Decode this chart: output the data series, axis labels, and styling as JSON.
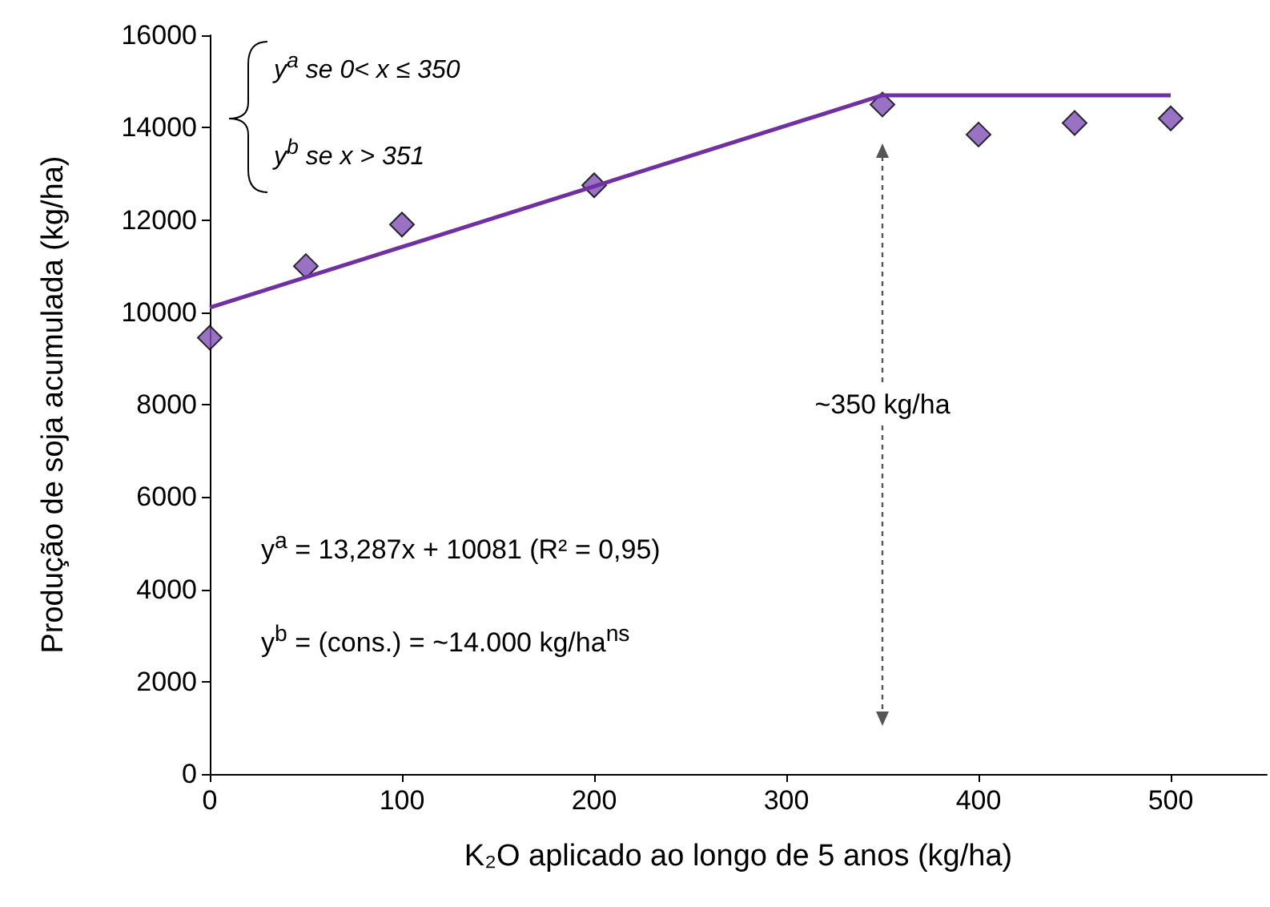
{
  "chart_data": {
    "type": "scatter",
    "xlabel": "K₂O aplicado ao longo de 5 anos (kg/ha)",
    "ylabel": "Produção de soja acumulada (kg/ha)",
    "xlim": [
      0,
      550
    ],
    "xticks": [
      0,
      100,
      200,
      300,
      400,
      500
    ],
    "ylim": [
      0,
      16000
    ],
    "yticks": [
      0,
      2000,
      4000,
      6000,
      8000,
      10000,
      12000,
      14000,
      16000
    ],
    "grid": false,
    "marker": "diamond",
    "series": [
      {
        "color": "#7f4fb5",
        "x": [
          0,
          50,
          100,
          200,
          350,
          400,
          450,
          500
        ],
        "values": [
          9450,
          11000,
          11900,
          12750,
          14500,
          13850,
          14100,
          14200
        ]
      },
      {
        "type": "line",
        "color": "#7030a0",
        "marker": "none",
        "line_style": "solid",
        "x": [
          0,
          350,
          500
        ],
        "values": [
          10100,
          14700,
          14700
        ]
      }
    ],
    "annotations": [
      "y$^{a}$ se 0< x ≤ 350",
      "y$^{b}$ se x > 351",
      "y$^{a}$ = 13,287x + 10081 (R² = 0,95)",
      "y$^{b}$ = (cons.) = ~14.000 kg/ha$^{ns}$",
      "~350 kg/ha"
    ]
  }
}
